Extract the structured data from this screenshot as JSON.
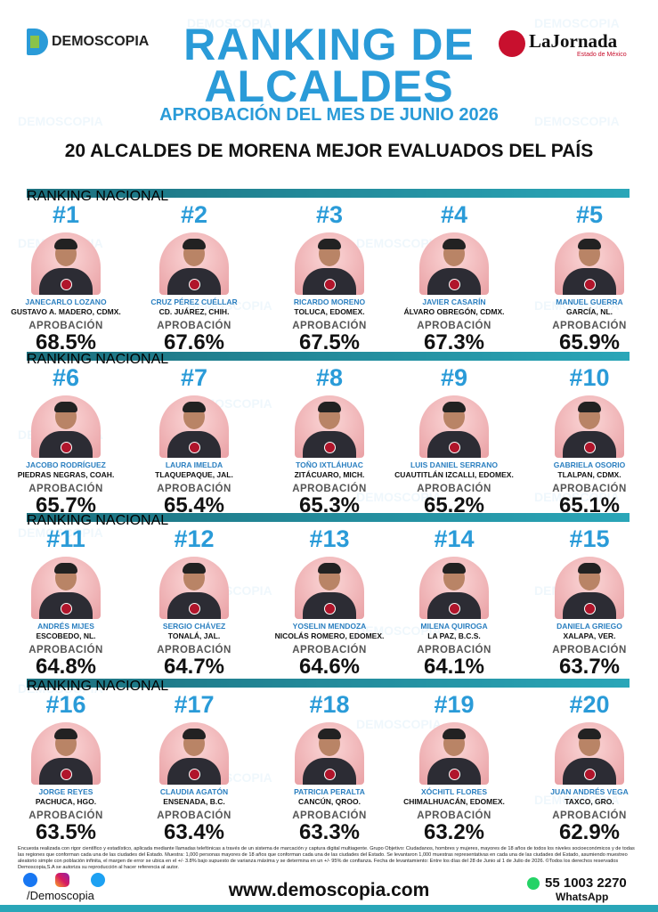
{
  "header": {
    "brand": "DEMOSCOPIA",
    "title_line1": "RANKING DE",
    "title_line2": "ALCALDES",
    "subtitle": "APROBACIÓN DEL MES DE JUNIO 2026",
    "headline": "20 ALCALDES DE MORENA MEJOR EVALUADOS DEL PAÍS",
    "partner": "LaJornada",
    "partner_sub": "Estado de México"
  },
  "watermark": "DEMOSCOPIA",
  "sections": [
    {
      "label": "RANKING NACIONAL",
      "mayors": [
        {
          "rank": "#1",
          "name": "JANECARLO LOZANO",
          "place": "GUSTAVO A. MADERO, CDMX.",
          "metric": "APROBACIÓN",
          "approval": "68.5%"
        },
        {
          "rank": "#2",
          "name": "CRUZ PÉREZ CUÉLLAR",
          "place": "CD. JUÁREZ, CHIH.",
          "metric": "APROBACIÓN",
          "approval": "67.6%"
        },
        {
          "rank": "#3",
          "name": "RICARDO MORENO",
          "place": "TOLUCA, EDOMEX.",
          "metric": "APROBACIÓN",
          "approval": "67.5%"
        },
        {
          "rank": "#4",
          "name": "JAVIER CASARÍN",
          "place": "ÁLVARO OBREGÓN, CDMX.",
          "metric": "APROBACIÓN",
          "approval": "67.3%"
        },
        {
          "rank": "#5",
          "name": "MANUEL GUERRA",
          "place": "GARCÍA, NL.",
          "metric": "APROBACIÓN",
          "approval": "65.9%"
        }
      ]
    },
    {
      "label": "RANKING NACIONAL",
      "mayors": [
        {
          "rank": "#6",
          "name": "JACOBO RODRÍGUEZ",
          "place": "PIEDRAS NEGRAS, COAH.",
          "metric": "APROBACIÓN",
          "approval": "65.7%"
        },
        {
          "rank": "#7",
          "name": "LAURA IMELDA",
          "place": "TLAQUEPAQUE, JAL.",
          "metric": "APROBACIÓN",
          "approval": "65.4%"
        },
        {
          "rank": "#8",
          "name": "TOÑO IXTLÁHUAC",
          "place": "ZITÁCUARO, MICH.",
          "metric": "APROBACIÓN",
          "approval": "65.3%"
        },
        {
          "rank": "#9",
          "name": "LUIS DANIEL SERRANO",
          "place": "CUAUTITLÁN IZCALLI, EDOMEX.",
          "metric": "APROBACIÓN",
          "approval": "65.2%"
        },
        {
          "rank": "#10",
          "name": "GABRIELA OSORIO",
          "place": "TLALPAN, CDMX.",
          "metric": "APROBACIÓN",
          "approval": "65.1%"
        }
      ]
    },
    {
      "label": "RANKING NACIONAL",
      "mayors": [
        {
          "rank": "#11",
          "name": "ANDRÉS MIJES",
          "place": "ESCOBEDO, NL.",
          "metric": "APROBACIÓN",
          "approval": "64.8%"
        },
        {
          "rank": "#12",
          "name": "SERGIO CHÁVEZ",
          "place": "TONALÁ, JAL.",
          "metric": "APROBACIÓN",
          "approval": "64.7%"
        },
        {
          "rank": "#13",
          "name": "YOSELIN MENDOZA",
          "place": "NICOLÁS ROMERO, EDOMEX.",
          "metric": "APROBACIÓN",
          "approval": "64.6%"
        },
        {
          "rank": "#14",
          "name": "MILENA QUIROGA",
          "place": "LA PAZ, B.C.S.",
          "metric": "APROBACIÓN",
          "approval": "64.1%"
        },
        {
          "rank": "#15",
          "name": "DANIELA GRIEGO",
          "place": "XALAPA, VER.",
          "metric": "APROBACIÓN",
          "approval": "63.7%"
        }
      ]
    },
    {
      "label": "RANKING NACIONAL",
      "mayors": [
        {
          "rank": "#16",
          "name": "JORGE REYES",
          "place": "PACHUCA, HGO.",
          "metric": "APROBACIÓN",
          "approval": "63.5%"
        },
        {
          "rank": "#17",
          "name": "CLAUDIA AGATÓN",
          "place": "ENSENADA, B.C.",
          "metric": "APROBACIÓN",
          "approval": "63.4%"
        },
        {
          "rank": "#18",
          "name": "PATRICIA PERALTA",
          "place": "CANCÚN, QROO.",
          "metric": "APROBACIÓN",
          "approval": "63.3%"
        },
        {
          "rank": "#19",
          "name": "XÓCHITL FLORES",
          "place": "CHIMALHUACÁN, EDOMEX.",
          "metric": "APROBACIÓN",
          "approval": "63.2%"
        },
        {
          "rank": "#20",
          "name": "JUAN ANDRÉS VEGA",
          "place": "TAXCO, GRO.",
          "metric": "APROBACIÓN",
          "approval": "62.9%"
        }
      ]
    }
  ],
  "footer": {
    "disclaimer": "Encuesta realizada con rigor científico y estadístico, aplicada mediante llamadas telefónicas a través de un sistema de marcación y captura digital multiagente. Grupo Objetivo: Ciudadanos, hombres y mujeres, mayores de 18 años de todos los niveles socioeconómicos y de todas las regiones que conforman cada una de las ciudades del Estado. Muestra: 1,000 personas mayores de 18 años que conforman cada una de las ciudades del Estado. Se levantaron 1,000 muestras representativas en cada una de las ciudades del Estado, asumiendo muestreo aleatorio simple con población infinita, el margen de error se ubica en el +/- 3.8% bajo supuesto de varianza máxima y se determina en un +/- 95% de confianza. Fecha de levantamiento: Entre los días del 28 de Junio al 1 de Julio de 2026. ©Todos los derechos reservados Demoscopia,S.A se autoriza su reproducción al hacer referencia al autor.",
    "handle": "/Demoscopia",
    "website": "www.demoscopia.com",
    "phone": "55 1003 2270",
    "whatsapp": "WhatsApp"
  }
}
